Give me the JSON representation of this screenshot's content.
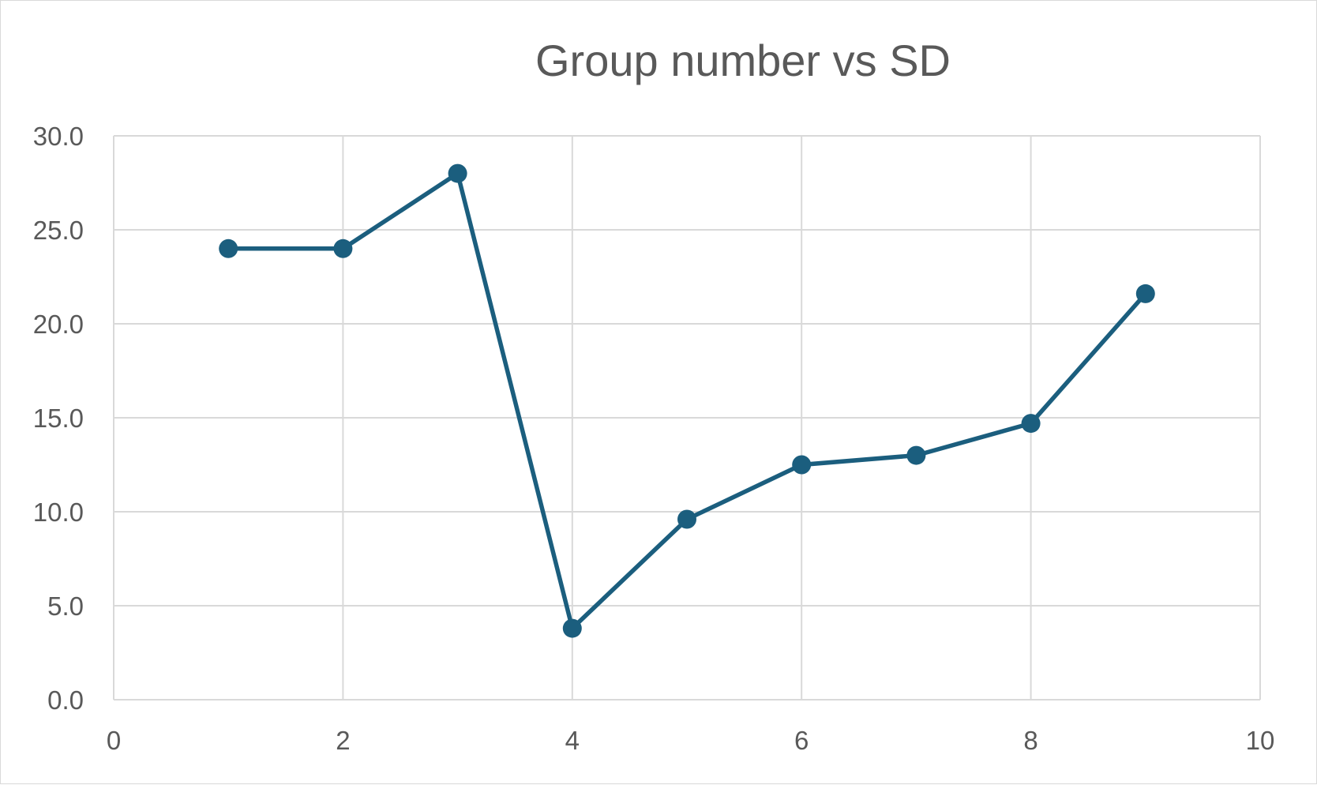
{
  "chart_data": {
    "type": "scatter",
    "title": "Group number vs SD",
    "xlabel": "",
    "ylabel": "",
    "xlim": [
      0,
      10
    ],
    "ylim": [
      0,
      30
    ],
    "x_ticks": [
      "0",
      "2",
      "4",
      "6",
      "8",
      "10"
    ],
    "y_ticks": [
      "0.0",
      "5.0",
      "10.0",
      "15.0",
      "20.0",
      "25.0",
      "30.0"
    ],
    "grid": true,
    "legend": "none",
    "series": [
      {
        "x": [
          1,
          2,
          3,
          4,
          5,
          6,
          7,
          8,
          9
        ],
        "y": [
          24.0,
          24.0,
          28.0,
          3.8,
          9.6,
          12.5,
          13.0,
          14.7,
          21.6
        ],
        "color": "#1b5e7e",
        "marker": "circle",
        "line": true
      }
    ]
  }
}
